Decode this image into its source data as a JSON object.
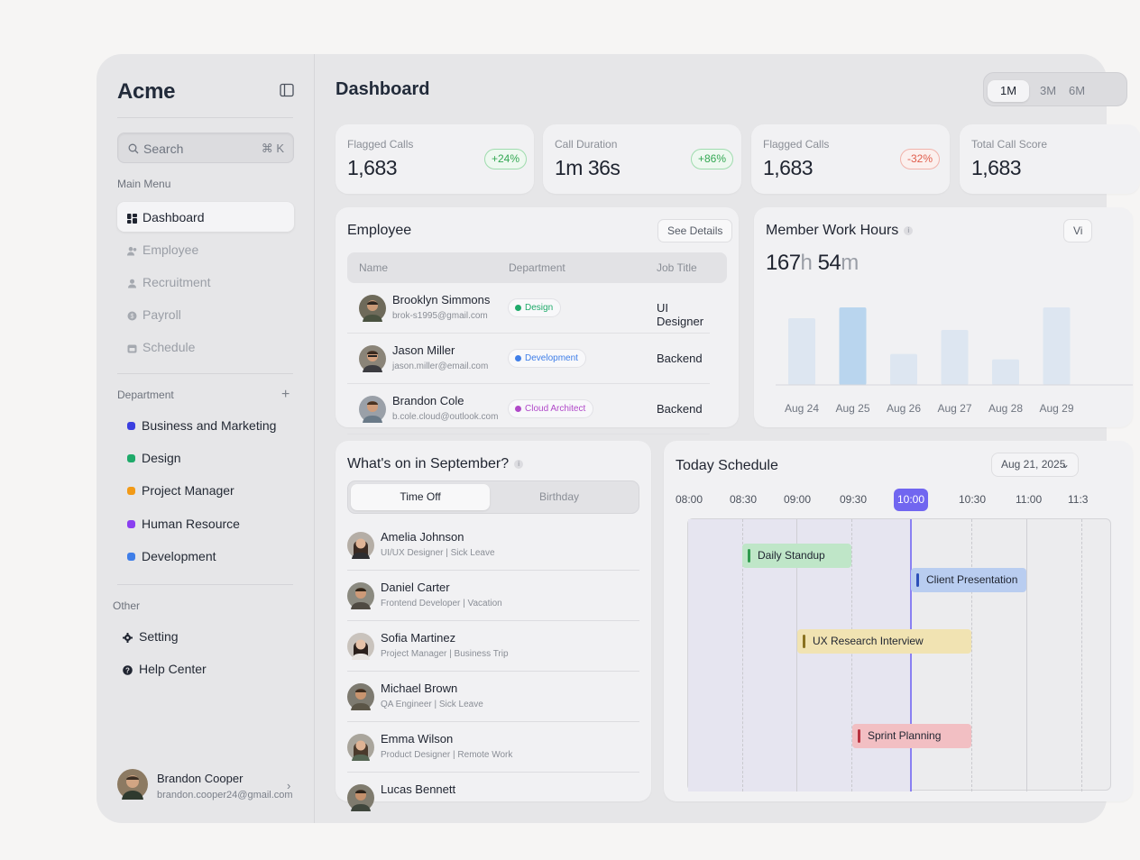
{
  "sidebar": {
    "brand": "Acme",
    "search": {
      "placeholder": "Search",
      "shortcut": "⌘ K"
    },
    "main_menu_label": "Main Menu",
    "main_menu": [
      {
        "label": "Dashboard",
        "icon": "grid-icon",
        "active": true
      },
      {
        "label": "Employee",
        "icon": "users-icon",
        "active": false
      },
      {
        "label": "Recruitment",
        "icon": "user-icon",
        "active": false
      },
      {
        "label": "Payroll",
        "icon": "coin-icon",
        "active": false
      },
      {
        "label": "Schedule",
        "icon": "calendar-icon",
        "active": false
      }
    ],
    "department_label": "Department",
    "departments": [
      {
        "label": "Business and Marketing",
        "color": "#3b3fe0"
      },
      {
        "label": "Design",
        "color": "#1faa6a"
      },
      {
        "label": "Project Manager",
        "color": "#f29a17"
      },
      {
        "label": "Human Resource",
        "color": "#8a3ff0"
      },
      {
        "label": "Development",
        "color": "#3f7ee8"
      }
    ],
    "other_label": "Other",
    "other": [
      {
        "label": "Setting",
        "icon": "gear-icon"
      },
      {
        "label": "Help Center",
        "icon": "help-icon"
      }
    ],
    "user": {
      "name": "Brandon Cooper",
      "email": "brandon.cooper24@gmail.com"
    }
  },
  "header": {
    "title": "Dashboard",
    "ranges": [
      "1M",
      "3M",
      "6M"
    ],
    "active_range": "1M"
  },
  "stats": [
    {
      "label": "Flagged Calls",
      "value": "1,683",
      "change": "+24%",
      "trend": "up"
    },
    {
      "label": "Call Duration",
      "value": "1m 36s",
      "change": "+86%",
      "trend": "up"
    },
    {
      "label": "Flagged Calls",
      "value": "1,683",
      "change": "-32%",
      "trend": "down"
    },
    {
      "label": "Total Call Score",
      "value": "1,683",
      "change": "",
      "trend": "none"
    }
  ],
  "employee": {
    "title": "Employee",
    "see_details": "See Details",
    "columns": [
      "Name",
      "Department",
      "Job Title"
    ],
    "rows": [
      {
        "name": "Brooklyn Simmons",
        "email": "brok-s1995@gmail.com",
        "department": "Design",
        "dept_color": "#1faa6a",
        "job": "UI Designer"
      },
      {
        "name": "Jason Miller",
        "email": "jason.miller@email.com",
        "department": "Development",
        "dept_color": "#3f7ee8",
        "job": "Backend"
      },
      {
        "name": "Brandon Cole",
        "email": "b.cole.cloud@outlook.com",
        "department": "Cloud Architect",
        "dept_color": "#b048c8",
        "job": "Backend"
      }
    ]
  },
  "work_hours": {
    "title": "Member Work Hours",
    "view_button": "Vi",
    "hours": "167",
    "hours_unit": "h",
    "minutes": "54",
    "minutes_unit": "m"
  },
  "chart_data": {
    "type": "bar",
    "categories": [
      "Aug 24",
      "Aug 25",
      "Aug 26",
      "Aug 27",
      "Aug 28",
      "Aug 29"
    ],
    "values": [
      0.86,
      1.0,
      0.4,
      0.71,
      0.33,
      1.0
    ],
    "highlighted": "Aug 25",
    "colors": {
      "bar": "#dde6f1",
      "highlight": "#b9d5ee"
    },
    "title": "Member Work Hours"
  },
  "september": {
    "title": "What's on in September?",
    "tabs": [
      "Time Off",
      "Birthday"
    ],
    "active_tab": "Time Off",
    "items": [
      {
        "name": "Amelia Johnson",
        "sub": "UI/UX Designer | Sick Leave"
      },
      {
        "name": "Daniel Carter",
        "sub": "Frontend Developer | Vacation"
      },
      {
        "name": "Sofia Martinez",
        "sub": "Project Manager | Business Trip"
      },
      {
        "name": "Michael Brown",
        "sub": "QA Engineer | Sick Leave"
      },
      {
        "name": "Emma Wilson",
        "sub": "Product Designer | Remote Work"
      },
      {
        "name": "Lucas Bennett",
        "sub": ""
      }
    ]
  },
  "schedule": {
    "title": "Today Schedule",
    "date": "Aug 21, 2025",
    "times": [
      "08:00",
      "08:30",
      "09:00",
      "09:30",
      "10:00",
      "10:30",
      "11:00",
      "11:3"
    ],
    "current_time": "10:00",
    "events": [
      {
        "label": "Daily Standup",
        "start": "08:30",
        "end": "09:30",
        "bg": "#bfe6c8",
        "accent": "#2f9a4e"
      },
      {
        "label": "Client Presentation",
        "start": "10:00",
        "end": "11:00",
        "bg": "#b9cdf0",
        "accent": "#2c4fb8"
      },
      {
        "label": "UX Research Interview",
        "start": "09:00",
        "end": "10:30",
        "bg": "#f1e3b2",
        "accent": "#8a7220"
      },
      {
        "label": "Sprint Planning",
        "start": "09:30",
        "end": "10:30",
        "bg": "#f2bfc3",
        "accent": "#b8323f"
      }
    ]
  }
}
